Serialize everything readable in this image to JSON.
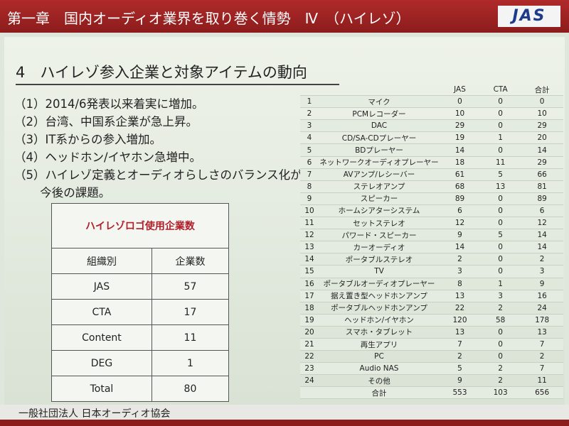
{
  "header": {
    "title": "第一章　国内オーディオ業界を取り巻く情勢　Ⅳ　（ハイレゾ）",
    "logo": "JAS"
  },
  "heading": "4　ハイレゾ参入企業と対象アイテムの動向",
  "bullets": [
    "（1）2014/6発表以来着実に増加。",
    "（2）台湾、中国系企業が急上昇。",
    "（3）IT系からの参入増加。",
    "（4）ヘッドホン/イヤホン急増中。",
    "（5）ハイレゾ定義とオーディオらしさのバランス化が今後の課題。"
  ],
  "logo_table": {
    "title": "ハイレゾロゴ使用企業数",
    "header": [
      "組織別",
      "企業数"
    ],
    "rows": [
      [
        "JAS",
        57
      ],
      [
        "CTA",
        17
      ],
      [
        "Content",
        11
      ],
      [
        "DEG",
        1
      ],
      [
        "Total",
        80
      ]
    ]
  },
  "item_table": {
    "header": [
      "JAS",
      "CTA",
      "合計"
    ],
    "rows": [
      [
        1,
        "マイク",
        0,
        0,
        0
      ],
      [
        2,
        "PCMレコーダー",
        10,
        0,
        10
      ],
      [
        3,
        "DAC",
        29,
        0,
        29
      ],
      [
        4,
        "CD/SA-CDプレーヤー",
        19,
        1,
        20
      ],
      [
        5,
        "BDプレーヤー",
        14,
        0,
        14
      ],
      [
        6,
        "ネットワークオーディオプレーヤー",
        18,
        11,
        29
      ],
      [
        7,
        "AVアンプ/レシーバー",
        61,
        5,
        66
      ],
      [
        8,
        "ステレオアンプ",
        68,
        13,
        81
      ],
      [
        9,
        "スピーカー",
        89,
        0,
        89
      ],
      [
        10,
        "ホームシアターシステム",
        6,
        0,
        6
      ],
      [
        11,
        "セットステレオ",
        12,
        0,
        12
      ],
      [
        12,
        "パワード・スピーカー",
        9,
        5,
        14
      ],
      [
        13,
        "カーオーディオ",
        14,
        0,
        14
      ],
      [
        14,
        "ポータブルステレオ",
        2,
        0,
        2
      ],
      [
        15,
        "TV",
        3,
        0,
        3
      ],
      [
        16,
        "ポータブルオーディオプレーヤー",
        8,
        1,
        9
      ],
      [
        17,
        "据え置き型ヘッドホンアンプ",
        13,
        3,
        16
      ],
      [
        18,
        "ポータブルヘッドホンアンプ",
        22,
        2,
        24
      ],
      [
        19,
        "ヘッドホン/イヤホン",
        120,
        58,
        178
      ],
      [
        20,
        "スマホ・タブレット",
        13,
        0,
        13
      ],
      [
        21,
        "再生アプリ",
        7,
        0,
        7
      ],
      [
        22,
        "PC",
        2,
        0,
        2
      ],
      [
        23,
        "Audio NAS",
        5,
        2,
        7
      ],
      [
        24,
        "その他",
        9,
        2,
        11
      ]
    ],
    "total": [
      "合計",
      553,
      103,
      656
    ]
  },
  "footer": "一般社団法人 日本オーディオ協会"
}
